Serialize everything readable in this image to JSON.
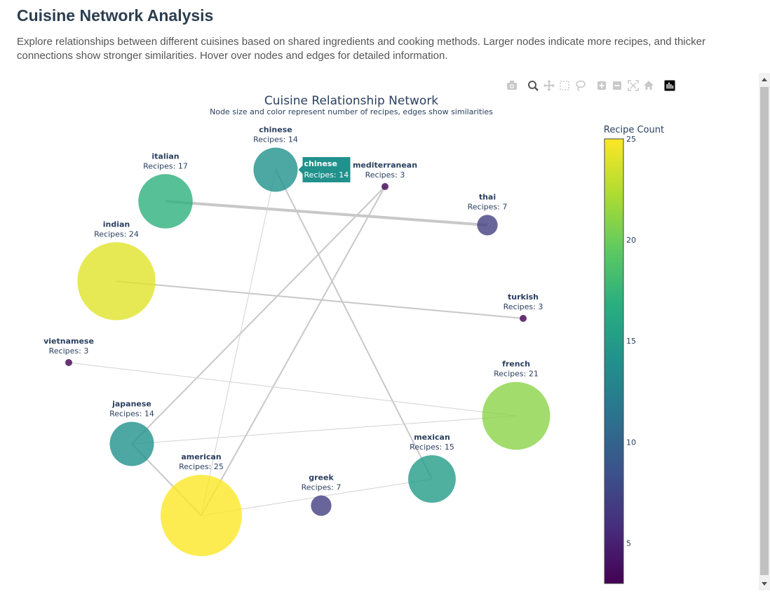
{
  "page": {
    "title": "Cuisine Network Analysis",
    "description": "Explore relationships between different cuisines based on shared ingredients and cooking methods. Larger nodes indicate more recipes, and thicker connections show stronger similarities. Hover over nodes and edges for detailed information."
  },
  "chart_data": {
    "type": "network",
    "title": "Cuisine Relationship Network",
    "subtitle": "Node size and color represent number of recipes, edges show similarities",
    "node_label_prefix": "Recipes: ",
    "colorbar": {
      "title": "Recipe Count",
      "range": [
        3,
        25
      ],
      "ticks": [
        5,
        10,
        15,
        20,
        25
      ],
      "colorscale": "Viridis"
    },
    "nodes": [
      {
        "name": "chinese",
        "recipes": 14
      },
      {
        "name": "mediterranean",
        "recipes": 3
      },
      {
        "name": "italian",
        "recipes": 17
      },
      {
        "name": "thai",
        "recipes": 7
      },
      {
        "name": "indian",
        "recipes": 24
      },
      {
        "name": "turkish",
        "recipes": 3
      },
      {
        "name": "vietnamese",
        "recipes": 3
      },
      {
        "name": "french",
        "recipes": 21
      },
      {
        "name": "japanese",
        "recipes": 14
      },
      {
        "name": "american",
        "recipes": 25
      },
      {
        "name": "mexican",
        "recipes": 15
      },
      {
        "name": "greek",
        "recipes": 7
      }
    ],
    "edges": [
      {
        "source": "italian",
        "target": "thai",
        "strength": "strong"
      },
      {
        "source": "indian",
        "target": "turkish",
        "strength": "medium"
      },
      {
        "source": "chinese",
        "target": "mexican",
        "strength": "medium"
      },
      {
        "source": "chinese",
        "target": "american",
        "strength": "weak"
      },
      {
        "source": "mediterranean",
        "target": "japanese",
        "strength": "medium"
      },
      {
        "source": "mediterranean",
        "target": "american",
        "strength": "medium"
      },
      {
        "source": "vietnamese",
        "target": "french",
        "strength": "weak"
      },
      {
        "source": "japanese",
        "target": "french",
        "strength": "weak"
      },
      {
        "source": "japanese",
        "target": "american",
        "strength": "medium"
      },
      {
        "source": "american",
        "target": "mexican",
        "strength": "weak"
      }
    ],
    "hover": {
      "node": "chinese",
      "label": "chinese",
      "value_text": "Recipes: 14"
    }
  },
  "modebar": [
    {
      "icon": "camera-icon"
    },
    {
      "icon": "zoom-icon"
    },
    {
      "icon": "pan-icon"
    },
    {
      "icon": "box-select-icon"
    },
    {
      "icon": "lasso-icon"
    },
    {
      "icon": "zoom-in-icon"
    },
    {
      "icon": "zoom-out-icon"
    },
    {
      "icon": "autoscale-icon"
    },
    {
      "icon": "home-icon"
    },
    {
      "icon": "plotly-logo-icon"
    }
  ]
}
